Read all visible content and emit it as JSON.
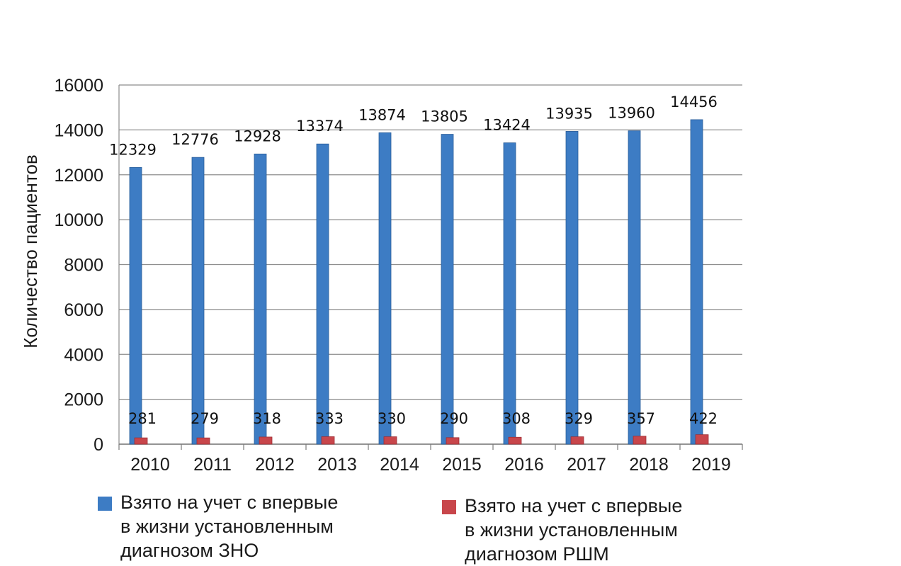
{
  "chart_data": {
    "type": "bar",
    "categories": [
      "2010",
      "2011",
      "2012",
      "2013",
      "2014",
      "2015",
      "2016",
      "2017",
      "2018",
      "2019"
    ],
    "series": [
      {
        "name": "Взято на учет с впервые\nв жизни установленным\nдиагнозом ЗНО",
        "color": "#3d7cc4",
        "values": [
          12329,
          12776,
          12928,
          13374,
          13874,
          13805,
          13424,
          13935,
          13960,
          14456
        ]
      },
      {
        "name": "Взято на учет с впервые\nв жизни установленным\nдиагнозом РШМ",
        "color": "#c8464b",
        "values": [
          281,
          279,
          318,
          333,
          330,
          290,
          308,
          329,
          357,
          422
        ]
      }
    ],
    "ylabel": "Количество пациентов",
    "ylim": [
      0,
      16000
    ],
    "yticks": [
      "0",
      "2000",
      "4000",
      "6000",
      "8000",
      "10000",
      "12000",
      "14000",
      "16000"
    ],
    "grid": true,
    "legend": "bottom"
  }
}
